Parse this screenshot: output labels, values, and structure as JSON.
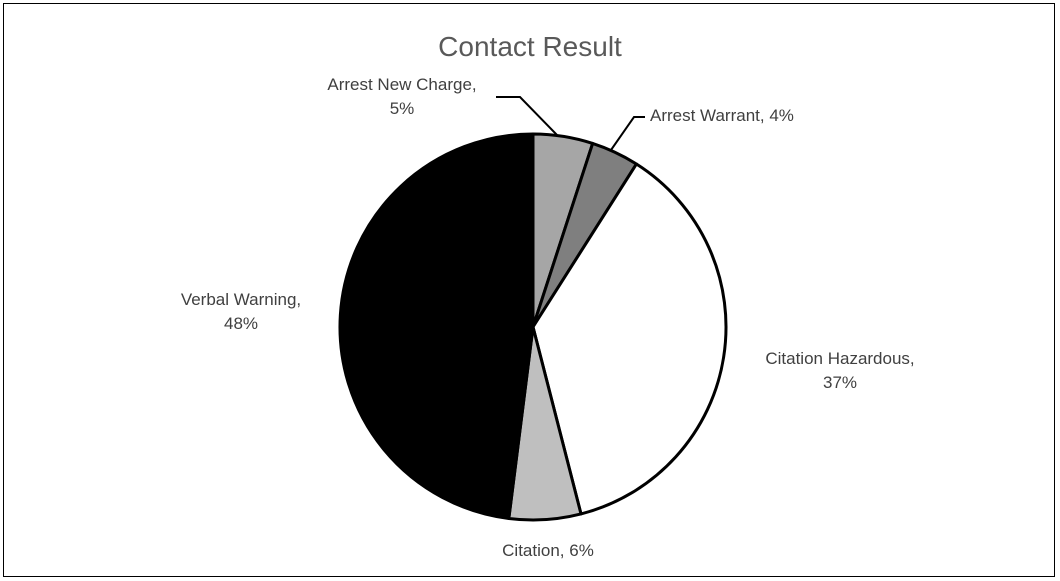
{
  "chart_data": {
    "type": "pie",
    "title": "Contact Result",
    "slices": [
      {
        "name": "Arrest New Charge",
        "value": 5,
        "label_lines": [
          "Arrest New Charge,",
          "5%"
        ],
        "color": "#a6a6a6"
      },
      {
        "name": "Arrest Warrant",
        "value": 4,
        "label_lines": [
          "Arrest Warrant, 4%"
        ],
        "color": "#7f7f7f"
      },
      {
        "name": "Citation Hazardous",
        "value": 37,
        "label_lines": [
          "Citation Hazardous,",
          "37%"
        ],
        "color": "#ffffff"
      },
      {
        "name": "Citation",
        "value": 6,
        "label_lines": [
          "Citation, 6%"
        ],
        "color": "#bfbfbf"
      },
      {
        "name": "Verbal Warning",
        "value": 48,
        "label_lines": [
          "Verbal Warning,",
          "48%"
        ],
        "color": "#000000"
      }
    ],
    "legend": "none",
    "slice_outline_color": "#000000"
  }
}
